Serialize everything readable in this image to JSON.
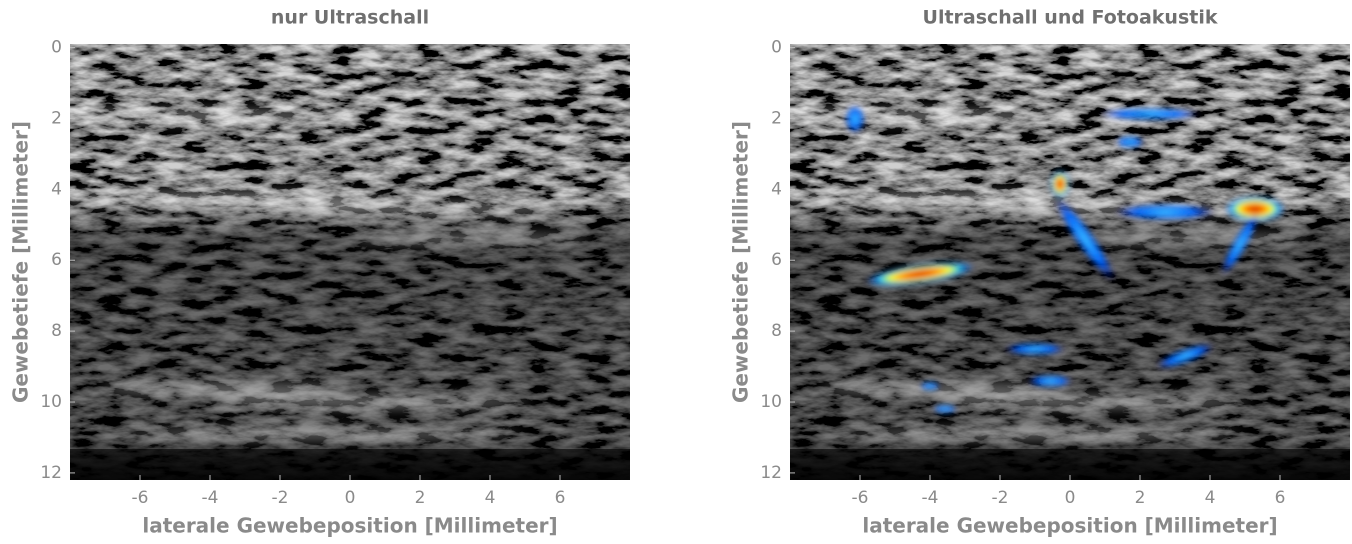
{
  "chart_data": [
    {
      "type": "image",
      "title": "nur Ultraschall",
      "xlabel": "laterale Gewebeposition [Millimeter]",
      "ylabel": "Gewebetiefe [Millimeter]",
      "xlim": [
        -8,
        8
      ],
      "ylim": [
        -0.1,
        12.2
      ],
      "y_inverted": true,
      "xticks": [
        -6,
        -4,
        -2,
        0,
        2,
        4,
        6
      ],
      "yticks": [
        0,
        2,
        4,
        6,
        8,
        10,
        12
      ]
    },
    {
      "type": "image",
      "title": "Ultraschall und Fotoakustik",
      "xlabel": "laterale Gewebeposition [Millimeter]",
      "ylabel": "Gewebetiefe [Millimeter]",
      "xlim": [
        -8,
        8
      ],
      "ylim": [
        -0.1,
        12.2
      ],
      "y_inverted": true,
      "xticks": [
        -6,
        -4,
        -2,
        0,
        2,
        4,
        6
      ],
      "yticks": [
        0,
        2,
        4,
        6,
        8,
        10,
        12
      ]
    }
  ]
}
